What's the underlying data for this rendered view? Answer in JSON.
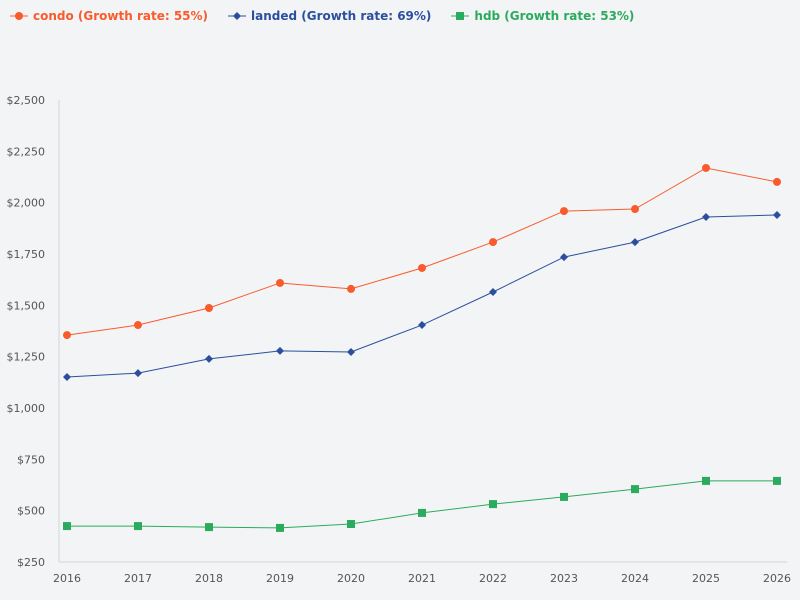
{
  "chart_data": {
    "type": "line",
    "x": [
      "2016",
      "2017",
      "2018",
      "2019",
      "2020",
      "2021",
      "2022",
      "2023",
      "2024",
      "2025",
      "2026"
    ],
    "ylim": [
      250,
      2500
    ],
    "yticks": [
      "$250",
      "$500",
      "$750",
      "$1,000",
      "$1,250",
      "$1,500",
      "$1,750",
      "$2,000",
      "$2,250",
      "$2,500"
    ],
    "ytick_values": [
      250,
      500,
      750,
      1000,
      1250,
      1500,
      1750,
      2000,
      2250,
      2500
    ],
    "grid": false,
    "legend_position": "top-left",
    "series": [
      {
        "name": "condo (Growth rate: 55%)",
        "color": "#f95b2c",
        "marker": "circle",
        "values": [
          1355,
          1404,
          1487,
          1609,
          1580,
          1682,
          1808,
          1959,
          1969,
          2169,
          2101
        ]
      },
      {
        "name": "landed (Growth rate: 69%)",
        "color": "#2b4f9e",
        "marker": "diamond",
        "values": [
          1151,
          1170,
          1239,
          1278,
          1273,
          1404,
          1565,
          1735,
          1808,
          1930,
          1940
        ]
      },
      {
        "name": "hdb (Growth rate: 53%)",
        "color": "#2bab5d",
        "marker": "square",
        "values": [
          425,
          425,
          420,
          416,
          435,
          489,
          532,
          567,
          605,
          645,
          645
        ]
      }
    ]
  }
}
